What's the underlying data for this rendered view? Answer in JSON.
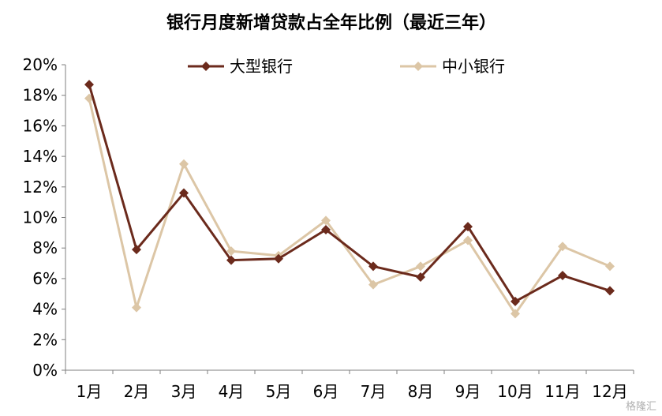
{
  "chart_data": {
    "type": "line",
    "title": "银行月度新增贷款占全年比例（最近三年）",
    "categories": [
      "1月",
      "2月",
      "3月",
      "4月",
      "5月",
      "6月",
      "7月",
      "8月",
      "9月",
      "10月",
      "11月",
      "12月"
    ],
    "y_ticks": [
      "0%",
      "2%",
      "4%",
      "6%",
      "8%",
      "10%",
      "12%",
      "14%",
      "16%",
      "18%",
      "20%"
    ],
    "ylim": [
      0,
      20
    ],
    "y_unit": "%",
    "grid": false,
    "legend_position": "top",
    "series": [
      {
        "name": "大型银行",
        "color": "#6b2a1c",
        "values": [
          18.7,
          7.9,
          11.6,
          7.2,
          7.3,
          9.2,
          6.8,
          6.1,
          9.4,
          4.5,
          6.2,
          5.2
        ]
      },
      {
        "name": "中小银行",
        "color": "#dcc6a6",
        "values": [
          17.8,
          4.1,
          13.5,
          7.8,
          7.5,
          9.8,
          5.6,
          6.8,
          8.5,
          3.7,
          8.1,
          6.8
        ]
      }
    ]
  },
  "watermark": "格隆汇"
}
